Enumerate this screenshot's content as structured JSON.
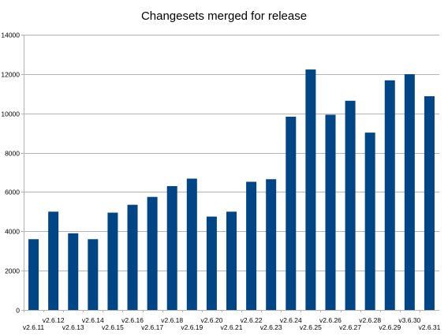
{
  "chart_data": {
    "type": "bar",
    "title": "Changesets merged for release",
    "xlabel": "",
    "ylabel": "",
    "categories": [
      "v2.6.11",
      "v2.6.12",
      "v2.6.13",
      "v2.6.14",
      "v2.6.15",
      "v2.6.16",
      "v2.6.17",
      "v2.6.18",
      "v2.6.19",
      "v2.6.20",
      "v2.6.21",
      "v2.6.22",
      "v2.6.23",
      "v2.6.24",
      "v2.6.25",
      "v2.6.26",
      "v2.6.27",
      "v2.6.28",
      "v2.6.29",
      "v3.6.30",
      "v2.6.31"
    ],
    "values": [
      3600,
      5000,
      3900,
      3600,
      4950,
      5350,
      5750,
      6300,
      6680,
      4750,
      5000,
      6520,
      6650,
      9830,
      12230,
      9930,
      10640,
      9020,
      11680,
      11990,
      10870
    ],
    "ylim": [
      0,
      14000
    ],
    "yticks": [
      0,
      2000,
      4000,
      6000,
      8000,
      10000,
      12000,
      14000
    ],
    "ytick_labels": [
      "0",
      "2000",
      "4000",
      "6000",
      "8000",
      "10000",
      "12000",
      "14000"
    ],
    "grid": true,
    "legend": "none",
    "bar_color": "#004586",
    "grid_color": "#b3b3b3"
  }
}
